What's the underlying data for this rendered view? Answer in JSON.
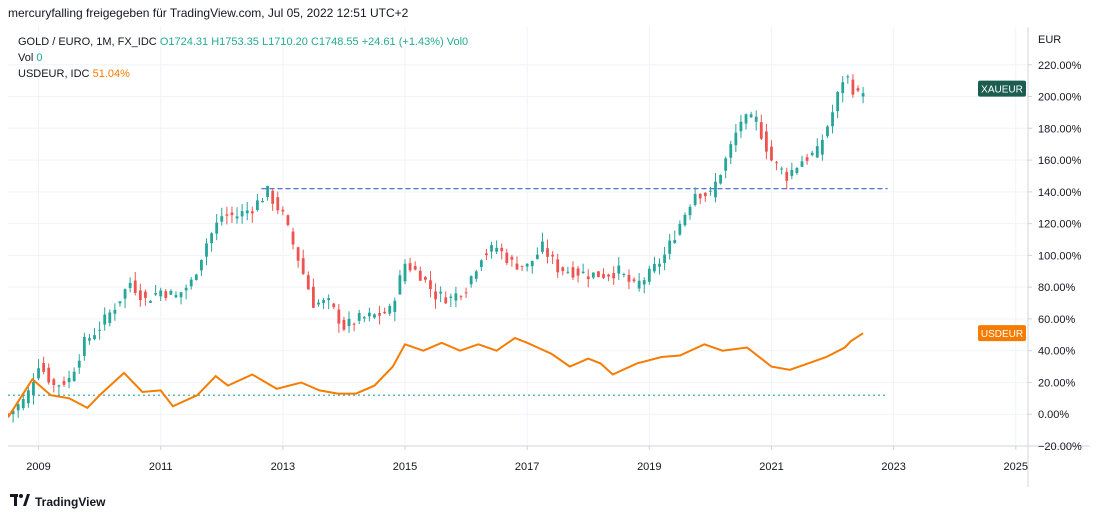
{
  "header": {
    "title": "mercuryfalling freigegeben für TradingView.com, Jul 05, 2022 12:51 UTC+2"
  },
  "legend": {
    "main_symbol": "GOLD / EURO, 1M, FX_IDC",
    "o": "O1724.31",
    "h": "H1753.35",
    "l": "L1710.20",
    "c": "C1748.55",
    "change": "+24.61 (+1.43%)",
    "vol_label": "Vol0",
    "vol_row_label": "Vol",
    "vol_row_value": "0",
    "usdeur_label": "USDEUR, IDC",
    "usdeur_value": "51.04%"
  },
  "footer": {
    "brand": "TradingView"
  },
  "colors": {
    "up": "#26a69a",
    "down": "#ef5350",
    "xaueur_tag": "#1b5e4f",
    "usdeur": "#f57c00",
    "dashed_line": "#3f5ecc",
    "baseline": "#26a69a"
  },
  "chart_data": {
    "type": "line",
    "price_scale_label": "EUR",
    "y_unit": "percent",
    "ylim": [
      -20,
      240
    ],
    "y_ticks": [
      -20,
      0,
      20,
      40,
      60,
      80,
      100,
      120,
      140,
      160,
      180,
      200,
      220
    ],
    "y_tick_labels": [
      "−20.00%",
      "0.00%",
      "20.00%",
      "40.00%",
      "60.00%",
      "80.00%",
      "100.00%",
      "120.00%",
      "140.00%",
      "160.00%",
      "180.00%",
      "200.00%",
      "220.00%"
    ],
    "x_range": [
      2008.5,
      2025.2
    ],
    "x_ticks": [
      2009,
      2011,
      2013,
      2015,
      2017,
      2019,
      2021,
      2023,
      2025
    ],
    "x_tick_labels": [
      "2009",
      "2011",
      "2013",
      "2015",
      "2017",
      "2019",
      "2021",
      "2023",
      "2025"
    ],
    "grid": true,
    "reference_lines": [
      {
        "style": "dashed",
        "y": 142,
        "x": [
          2012.65,
          2022.9
        ]
      },
      {
        "style": "dotted",
        "y": 12,
        "x": [
          2008.5,
          2022.9
        ]
      }
    ],
    "series": [
      {
        "name": "XAUEUR",
        "style": "candlestick",
        "points": [
          [
            2008.5,
            0
          ],
          [
            2008.8,
            10
          ],
          [
            2009.0,
            32
          ],
          [
            2009.25,
            18
          ],
          [
            2009.5,
            22
          ],
          [
            2009.75,
            45
          ],
          [
            2010.0,
            55
          ],
          [
            2010.25,
            68
          ],
          [
            2010.5,
            83
          ],
          [
            2010.75,
            72
          ],
          [
            2011.0,
            78
          ],
          [
            2011.25,
            74
          ],
          [
            2011.5,
            83
          ],
          [
            2011.75,
            108
          ],
          [
            2012.0,
            125
          ],
          [
            2012.25,
            125
          ],
          [
            2012.5,
            130
          ],
          [
            2012.75,
            140
          ],
          [
            2013.0,
            125
          ],
          [
            2013.25,
            98
          ],
          [
            2013.5,
            70
          ],
          [
            2013.75,
            70
          ],
          [
            2014.0,
            55
          ],
          [
            2014.25,
            60
          ],
          [
            2014.5,
            62
          ],
          [
            2014.75,
            65
          ],
          [
            2015.0,
            95
          ],
          [
            2015.25,
            88
          ],
          [
            2015.5,
            75
          ],
          [
            2015.75,
            73
          ],
          [
            2016.0,
            80
          ],
          [
            2016.25,
            100
          ],
          [
            2016.5,
            105
          ],
          [
            2016.75,
            95
          ],
          [
            2017.0,
            93
          ],
          [
            2017.25,
            105
          ],
          [
            2017.5,
            92
          ],
          [
            2017.75,
            90
          ],
          [
            2018.0,
            88
          ],
          [
            2018.25,
            88
          ],
          [
            2018.5,
            90
          ],
          [
            2018.75,
            80
          ],
          [
            2019.0,
            88
          ],
          [
            2019.25,
            100
          ],
          [
            2019.5,
            120
          ],
          [
            2019.75,
            140
          ],
          [
            2020.0,
            138
          ],
          [
            2020.25,
            160
          ],
          [
            2020.5,
            185
          ],
          [
            2020.75,
            185
          ],
          [
            2021.0,
            160
          ],
          [
            2021.25,
            150
          ],
          [
            2021.5,
            160
          ],
          [
            2021.75,
            165
          ],
          [
            2022.0,
            190
          ],
          [
            2022.2,
            215
          ],
          [
            2022.4,
            200
          ],
          [
            2022.5,
            205
          ]
        ],
        "last_label": "XAUEUR"
      },
      {
        "name": "USDEUR",
        "style": "line",
        "points": [
          [
            2008.5,
            -2
          ],
          [
            2008.9,
            22
          ],
          [
            2009.2,
            12
          ],
          [
            2009.5,
            10
          ],
          [
            2009.8,
            4
          ],
          [
            2010.0,
            12
          ],
          [
            2010.4,
            26
          ],
          [
            2010.7,
            14
          ],
          [
            2011.0,
            15
          ],
          [
            2011.2,
            5
          ],
          [
            2011.6,
            12
          ],
          [
            2011.9,
            24
          ],
          [
            2012.1,
            18
          ],
          [
            2012.5,
            25
          ],
          [
            2012.9,
            16
          ],
          [
            2013.3,
            20
          ],
          [
            2013.6,
            15
          ],
          [
            2013.9,
            13
          ],
          [
            2014.2,
            13
          ],
          [
            2014.5,
            18
          ],
          [
            2014.8,
            30
          ],
          [
            2015.0,
            44
          ],
          [
            2015.3,
            40
          ],
          [
            2015.6,
            45
          ],
          [
            2015.9,
            40
          ],
          [
            2016.2,
            44
          ],
          [
            2016.5,
            40
          ],
          [
            2016.8,
            48
          ],
          [
            2017.0,
            45
          ],
          [
            2017.4,
            38
          ],
          [
            2017.7,
            30
          ],
          [
            2018.0,
            35
          ],
          [
            2018.2,
            32
          ],
          [
            2018.4,
            25
          ],
          [
            2018.8,
            32
          ],
          [
            2019.2,
            36
          ],
          [
            2019.5,
            37
          ],
          [
            2019.9,
            44
          ],
          [
            2020.2,
            40
          ],
          [
            2020.6,
            42
          ],
          [
            2020.9,
            33
          ],
          [
            2021.0,
            30
          ],
          [
            2021.3,
            28
          ],
          [
            2021.6,
            32
          ],
          [
            2021.9,
            36
          ],
          [
            2022.2,
            42
          ],
          [
            2022.3,
            46
          ],
          [
            2022.5,
            51.04
          ]
        ],
        "last_label": "USDEUR"
      }
    ]
  }
}
